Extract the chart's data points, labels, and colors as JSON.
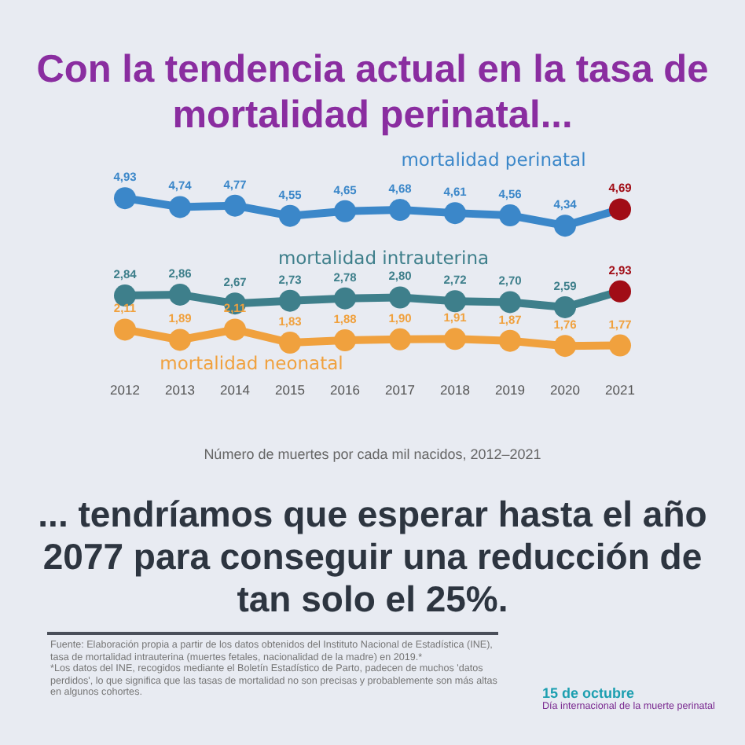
{
  "chart_data": {
    "type": "line",
    "title": "Con la tendencia actual en la tasa de mortalidad perinatal...",
    "subtitle": "... tendríamos que esperar hasta el año 2077 para conseguir una reducción de tan solo el 25%.",
    "xlabel": "Número de muertes por cada mil nacidos, 2012–2021",
    "categories": [
      "2012",
      "2013",
      "2014",
      "2015",
      "2016",
      "2017",
      "2018",
      "2019",
      "2020",
      "2021"
    ],
    "series": [
      {
        "name": "mortalidad perinatal",
        "color": "#3b87c9",
        "colors": [
          "#3b87c9",
          "#3b87c9",
          "#3b87c9",
          "#3b87c9",
          "#3b87c9",
          "#3b87c9",
          "#3b87c9",
          "#3b87c9",
          "#3b87c9",
          "#a10d16"
        ],
        "values": [
          4.93,
          4.74,
          4.77,
          4.55,
          4.65,
          4.68,
          4.61,
          4.56,
          4.34,
          4.69
        ],
        "value_labels": [
          "4,93",
          "4,74",
          "4,77",
          "4,55",
          "4,65",
          "4,68",
          "4,61",
          "4,56",
          "4,34",
          "4,69"
        ]
      },
      {
        "name": "mortalidad intrauterina",
        "color": "#3e7f8b",
        "colors": [
          "#3e7f8b",
          "#3e7f8b",
          "#3e7f8b",
          "#3e7f8b",
          "#3e7f8b",
          "#3e7f8b",
          "#3e7f8b",
          "#3e7f8b",
          "#3e7f8b",
          "#a10d16"
        ],
        "values": [
          2.84,
          2.86,
          2.67,
          2.73,
          2.78,
          2.8,
          2.72,
          2.7,
          2.59,
          2.93
        ],
        "value_labels": [
          "2,84",
          "2,86",
          "2,67",
          "2,73",
          "2,78",
          "2,80",
          "2,72",
          "2,70",
          "2,59",
          "2,93"
        ]
      },
      {
        "name": "mortalidad neonatal",
        "color": "#f0a13e",
        "values": [
          2.11,
          1.89,
          2.11,
          1.83,
          1.88,
          1.9,
          1.91,
          1.87,
          1.76,
          1.77
        ],
        "value_labels": [
          "2,11",
          "1,89",
          "2,11",
          "1,83",
          "1,88",
          "1,90",
          "1,91",
          "1,87",
          "1,76",
          "1,77"
        ]
      }
    ],
    "tick_labels": "x",
    "grid": false,
    "legend": false,
    "marker": "circle",
    "line_style": "solid",
    "annotations": [
      "Fuente: Elaboración propia a partir de los datos obtenidos del Instituto Nacional de Estadística (INE), tasa de mortalidad intrauterina (muertes fetales, nacionalidad de la madre) en 2019.*",
      "*Los datos del INE, recogidos mediante el Boletín Estadístico de Parto, padecen de muchos 'datos perdidos', lo que significa que las tasas de mortalidad no son precisas y probablemente son más altas en algunos cohortes.",
      "15 de octubre",
      "Día internacional de la muerte perinatal"
    ]
  }
}
